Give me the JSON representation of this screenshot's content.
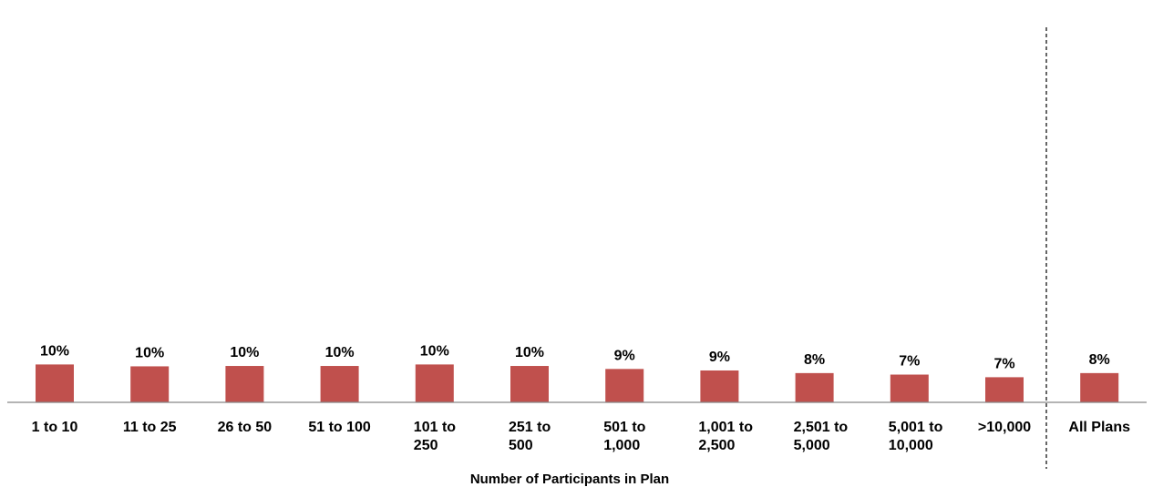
{
  "chart_data": {
    "type": "bar",
    "categories": [
      [
        "1 to 10"
      ],
      [
        "11 to 25"
      ],
      [
        "26 to 50"
      ],
      [
        "51 to 100"
      ],
      [
        "101 to",
        "250"
      ],
      [
        "251 to",
        "500"
      ],
      [
        "501 to",
        "1,000"
      ],
      [
        "1,001 to",
        "2,500"
      ],
      [
        "2,501 to",
        "5,000"
      ],
      [
        "5,001 to",
        "10,000"
      ],
      [
        ">10,000"
      ],
      [
        "All Plans"
      ]
    ],
    "values": [
      10.1,
      9.6,
      9.7,
      9.7,
      10.1,
      9.7,
      8.9,
      8.5,
      7.8,
      7.4,
      6.7,
      7.8
    ],
    "data_labels": [
      "10%",
      "10%",
      "10%",
      "10%",
      "10%",
      "10%",
      "9%",
      "9%",
      "8%",
      "7%",
      "7%",
      "8%"
    ],
    "xlabel": "Number of Participants in Plan",
    "ylabel": "",
    "ylim": [
      0,
      100
    ],
    "bar_color": "#c0504d",
    "axis_color": "#868686",
    "separator_before_category": "All Plans",
    "grid": false
  }
}
